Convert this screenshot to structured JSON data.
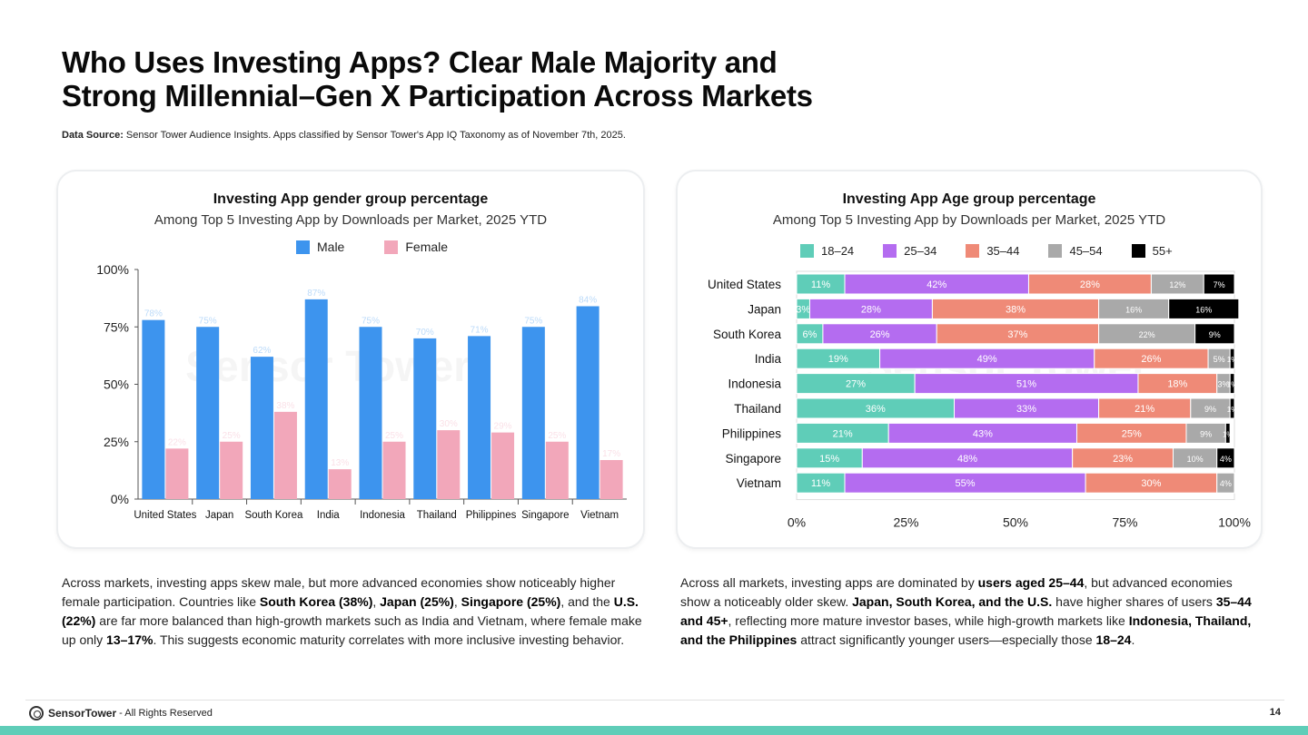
{
  "header": {
    "title_line1": "Who Uses Investing Apps? Clear Male Majority and",
    "title_line2": "Strong Millennial–Gen X Participation Across Markets",
    "source_label": "Data Source:",
    "source_text": "Sensor Tower Audience Insights. Apps classified by Sensor Tower's App IQ Taxonomy as of November 7th, 2025."
  },
  "colors": {
    "male": "#3d94ee",
    "female": "#f2a7ba",
    "age_18_24": "#5fcdb8",
    "age_25_34": "#b46cf0",
    "age_35_44": "#ef8a77",
    "age_45_54": "#a9a9a9",
    "age_55_plus": "#000000",
    "accent_bar": "#5fcdb8"
  },
  "chart_data": [
    {
      "type": "bar",
      "title": "Investing App gender group percentage",
      "subtitle": "Among Top 5 Investing App by Downloads  per Market,  2025 YTD",
      "categories": [
        "United States",
        "Japan",
        "South Korea",
        "India",
        "Indonesia",
        "Thailand",
        "Philippines",
        "Singapore",
        "Vietnam"
      ],
      "series": [
        {
          "name": "Male",
          "values": [
            78,
            75,
            62,
            87,
            75,
            70,
            71,
            75,
            84
          ],
          "labels": [
            "78%",
            "75%",
            "62%",
            "87%",
            "75%",
            "70%",
            "71%",
            "75%",
            "84%"
          ]
        },
        {
          "name": "Female",
          "values": [
            22,
            25,
            38,
            13,
            25,
            30,
            29,
            25,
            17
          ],
          "labels": [
            "22%",
            "25%",
            "38%",
            "13%",
            "25%",
            "30%",
            "29%",
            "25%",
            "17%"
          ]
        }
      ],
      "yticks": [
        "0%",
        "25%",
        "50%",
        "75%",
        "100%"
      ],
      "ylim": [
        0,
        100
      ],
      "legend_position": "top-center"
    },
    {
      "type": "bar",
      "orientation": "horizontal-stacked",
      "title": "Investing App  Age group percentage",
      "subtitle": "Among Top 5 Investing App by Downloads  per Market, 2025 YTD",
      "categories": [
        "United States",
        "Japan",
        "South Korea",
        "India",
        "Indonesia",
        "Thailand",
        "Philippines",
        "Singapore",
        "Vietnam"
      ],
      "series": [
        {
          "name": "18–24",
          "values": [
            11,
            3,
            6,
            19,
            27,
            36,
            21,
            15,
            11
          ],
          "labels": [
            "11%",
            "3%",
            "6%",
            "19%",
            "27%",
            "36%",
            "21%",
            "15%",
            "11%"
          ]
        },
        {
          "name": "25–34",
          "values": [
            42,
            28,
            26,
            49,
            51,
            33,
            43,
            48,
            55
          ],
          "labels": [
            "42%",
            "28%",
            "26%",
            "49%",
            "51%",
            "33%",
            "43%",
            "48%",
            "55%"
          ]
        },
        {
          "name": "35–44",
          "values": [
            28,
            38,
            37,
            26,
            18,
            21,
            25,
            23,
            30
          ],
          "labels": [
            "28%",
            "38%",
            "37%",
            "26%",
            "18%",
            "21%",
            "25%",
            "23%",
            "30%"
          ]
        },
        {
          "name": "45–54",
          "values": [
            12,
            16,
            22,
            5,
            3,
            9,
            9,
            10,
            4
          ],
          "labels": [
            "12%",
            "16%",
            "22%",
            "5%",
            "3%",
            "9%",
            "9%",
            "10%",
            "4%"
          ]
        },
        {
          "name": "55+",
          "values": [
            7,
            16,
            9,
            1,
            1,
            1,
            1,
            4,
            0
          ],
          "labels": [
            "7%",
            "16%",
            "9%",
            "1%",
            "1%",
            "1%",
            "1%",
            "4%",
            "0%"
          ]
        }
      ],
      "xticks": [
        "0%",
        "25%",
        "50%",
        "75%",
        "100%"
      ],
      "xlim": [
        0,
        100
      ],
      "legend_position": "top-center"
    }
  ],
  "watermark": "Sensor Tower",
  "paragraphs": {
    "left": [
      {
        "t": "Across markets, investing apps skew male, but more advanced economies show noticeably higher female participation. Countries like ",
        "b": false
      },
      {
        "t": "South Korea (38%)",
        "b": true
      },
      {
        "t": ", ",
        "b": false
      },
      {
        "t": "Japan (25%)",
        "b": true
      },
      {
        "t": ", ",
        "b": false
      },
      {
        "t": "Singapore (25%)",
        "b": true
      },
      {
        "t": ", and the ",
        "b": false
      },
      {
        "t": "U.S. (22%)",
        "b": true
      },
      {
        "t": " are far more balanced than high-growth markets such as India and Vietnam, where female make up only ",
        "b": false
      },
      {
        "t": "13–17%",
        "b": true
      },
      {
        "t": ". This suggests economic maturity correlates with more inclusive investing behavior.",
        "b": false
      }
    ],
    "right": [
      {
        "t": "Across all markets, investing apps are dominated by ",
        "b": false
      },
      {
        "t": "users aged 25–44",
        "b": true
      },
      {
        "t": ", but advanced economies show a noticeably older skew. ",
        "b": false
      },
      {
        "t": "Japan, South Korea, and the U.S.",
        "b": true
      },
      {
        "t": " have higher shares of users ",
        "b": false
      },
      {
        "t": "35–44 and 45+",
        "b": true
      },
      {
        "t": ", reflecting more mature investor bases, while high-growth markets like ",
        "b": false
      },
      {
        "t": "Indonesia, Thailand, and the Philippines",
        "b": true
      },
      {
        "t": " attract significantly younger users—especially those ",
        "b": false
      },
      {
        "t": "18–24",
        "b": true
      },
      {
        "t": ".",
        "b": false
      }
    ]
  },
  "footer": {
    "brand": "SensorTower",
    "rights": "- All Rights Reserved",
    "page_number": "14"
  }
}
